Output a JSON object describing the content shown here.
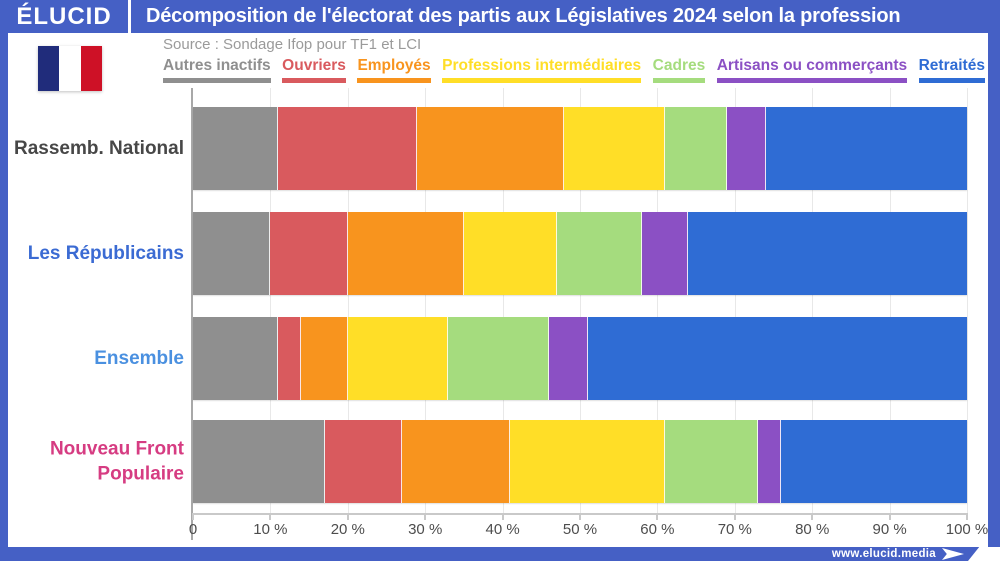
{
  "header": {
    "logo_text": "ÉLUCID",
    "title": "Décomposition de l'électorat des partis aux Législatives 2024 selon la profession"
  },
  "source_line": "Source : Sondage Ifop pour TF1 et LCI",
  "footer": {
    "site_url": "www.elucid.media"
  },
  "flag": {
    "colors": [
      "#202C7B",
      "#FFFFFF",
      "#CE1126"
    ]
  },
  "colors": {
    "frame_blue": "#4560C5",
    "gridline": "#E8E8E8",
    "axis": "#A8A8A8"
  },
  "chart_data": {
    "type": "bar",
    "orientation": "horizontal-stacked",
    "title": "Décomposition de l'électorat des partis aux Législatives 2024 selon la profession",
    "unit": "%",
    "xlim": [
      0,
      100
    ],
    "grid": true,
    "legend_position": "top",
    "categories": [
      "Rassemb. National",
      "Les Républicains",
      "Ensemble",
      "Nouveau Front Populaire"
    ],
    "category_colors": [
      "#474747",
      "#3B6BD3",
      "#4A90E0",
      "#D63C82"
    ],
    "series": [
      {
        "name": "Autres inactifs",
        "color": "#8F8F8F",
        "values": [
          11,
          10,
          11,
          17
        ]
      },
      {
        "name": "Ouvriers",
        "color": "#D95A5E",
        "values": [
          18,
          10,
          3,
          10
        ]
      },
      {
        "name": "Employés",
        "color": "#F8941E",
        "values": [
          19,
          15,
          6,
          14
        ]
      },
      {
        "name": "Professions intermédiaires",
        "color": "#FFDE27",
        "values": [
          13,
          12,
          13,
          20
        ]
      },
      {
        "name": "Cadres",
        "color": "#A5DC7E",
        "values": [
          8,
          11,
          13,
          12
        ]
      },
      {
        "name": "Artisans ou commerçants",
        "color": "#8B50C4",
        "values": [
          5,
          6,
          5,
          3
        ]
      },
      {
        "name": "Retraités",
        "color": "#2F6CD4",
        "values": [
          26,
          36,
          49,
          24
        ]
      }
    ],
    "x_ticks": [
      "0",
      "10 %",
      "20 %",
      "30 %",
      "40 %",
      "50 %",
      "60 %",
      "70 %",
      "80 %",
      "90 %",
      "100 %"
    ]
  }
}
